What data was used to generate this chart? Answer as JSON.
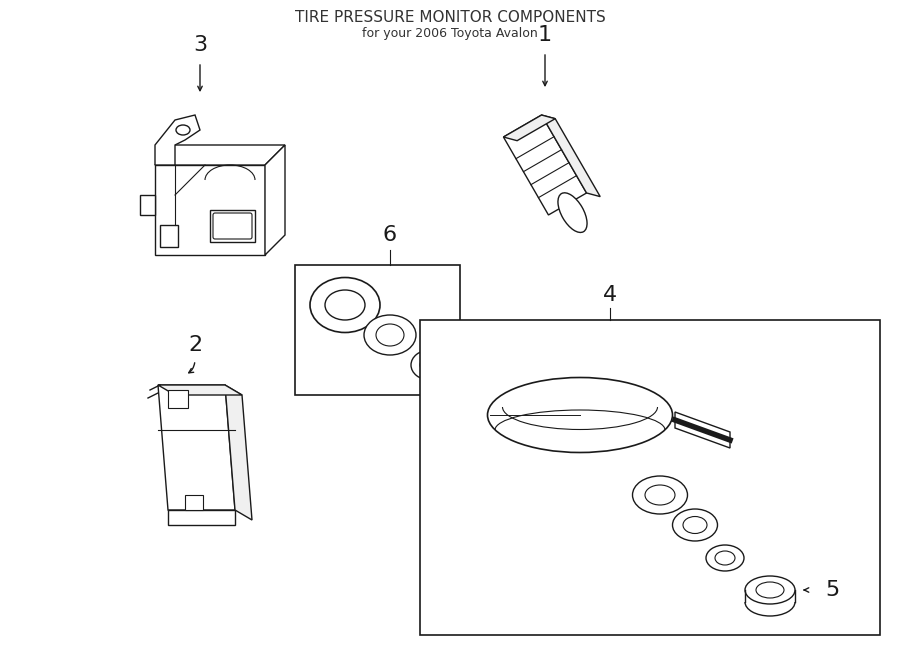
{
  "title": "TIRE PRESSURE MONITOR COMPONENTS",
  "subtitle": "for your 2006 Toyota Avalon",
  "background": "#ffffff",
  "line_color": "#1a1a1a",
  "figsize": [
    9.0,
    6.61
  ],
  "dpi": 100,
  "lw": 1.0
}
